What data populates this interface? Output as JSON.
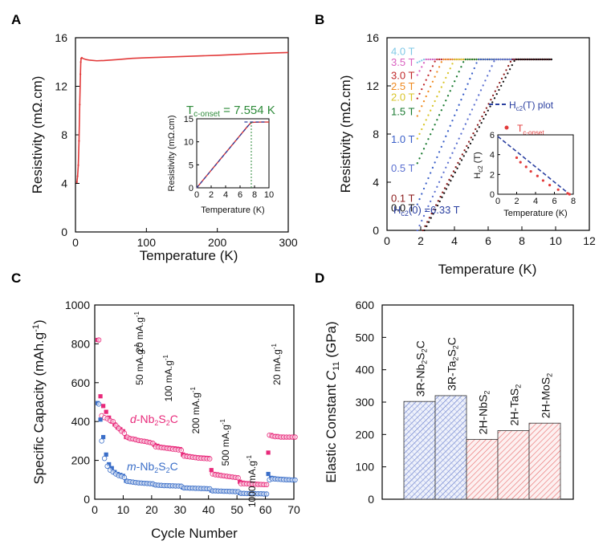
{
  "panels": {
    "A": {
      "letter": "A"
    },
    "B": {
      "letter": "B"
    },
    "C": {
      "letter": "C"
    },
    "D": {
      "letter": "D"
    }
  },
  "chart_data": [
    {
      "panel": "A",
      "type": "line",
      "xlabel": "Temperature (K)",
      "ylabel": "Resistivity (mΩ.cm)",
      "xlim": [
        0,
        300
      ],
      "ylim": [
        0,
        16
      ],
      "xticks": [
        "0",
        "100",
        "200",
        "300"
      ],
      "yticks": [
        "0",
        "4",
        "8",
        "12",
        "16"
      ],
      "annotation": {
        "prefix": "T",
        "sub": "c-onset",
        "suffix": " = 7.554 K"
      },
      "color": "#e23a3a",
      "series": [
        {
          "x": [
            2,
            3,
            4,
            5,
            6,
            7,
            7.5,
            8,
            9,
            10,
            15,
            20,
            30,
            40,
            60,
            80,
            100,
            150,
            200,
            250,
            280,
            300
          ],
          "y": [
            4.1,
            4.6,
            5.5,
            7.5,
            10.5,
            13.0,
            14.0,
            14.3,
            14.35,
            14.3,
            14.2,
            14.15,
            14.1,
            14.12,
            14.2,
            14.3,
            14.35,
            14.45,
            14.55,
            14.68,
            14.75,
            14.78
          ]
        }
      ],
      "inset": {
        "xlabel": "Temperature (K)",
        "ylabel": "Resistivity (mΩ.cm)",
        "xlim": [
          0,
          10
        ],
        "ylim": [
          0,
          15
        ],
        "xticks": [
          "0",
          "2",
          "4",
          "6",
          "8",
          "10"
        ],
        "yticks": [
          "0",
          "5",
          "10",
          "15"
        ],
        "series": [
          {
            "x": [
              0,
              1,
              2,
              3,
              4,
              5,
              6,
              7,
              7.554,
              8,
              9,
              10
            ],
            "y": [
              0,
              1.9,
              3.8,
              5.7,
              7.6,
              9.5,
              11.4,
              13.3,
              14.2,
              14.25,
              14.3,
              14.3
            ]
          }
        ],
        "fit_line": {
          "x": [
            0,
            7.554
          ],
          "y": [
            0,
            14.3
          ]
        },
        "plateau_line": {
          "x": [
            6.6,
            9.5
          ],
          "y": [
            14.3,
            14.3
          ]
        },
        "marker_x": 7.554
      }
    },
    {
      "panel": "B",
      "type": "scatter",
      "xlabel": "Temperature (K)",
      "ylabel": "Resistivity (mΩ.cm)",
      "xlim": [
        0,
        12
      ],
      "ylim": [
        0,
        16
      ],
      "xticks": [
        "0",
        "2",
        "4",
        "6",
        "8",
        "10",
        "12"
      ],
      "yticks": [
        "0",
        "4",
        "8",
        "12",
        "16"
      ],
      "series": [
        {
          "name": "4.0 T",
          "color": "#7fc8e6",
          "y_label": 14.9,
          "onset": 2.2
        },
        {
          "name": "3.5 T",
          "color": "#d95fbf",
          "y_label": 14.0,
          "onset": 2.3
        },
        {
          "name": "3.0 T",
          "color": "#c0282a",
          "y_label": 12.9,
          "onset": 2.9
        },
        {
          "name": "2.5 T",
          "color": "#ef8a20",
          "y_label": 12.0,
          "onset": 3.3
        },
        {
          "name": "2.0 T",
          "color": "#d9c52a",
          "y_label": 11.1,
          "onset": 4.0
        },
        {
          "name": "1.5 T",
          "color": "#1a7a30",
          "y_label": 9.9,
          "onset": 4.6
        },
        {
          "name": "1.0 T",
          "color": "#3a5fc8",
          "y_label": 7.6,
          "onset": 5.4
        },
        {
          "name": "0.5 T",
          "color": "#5a6fd0",
          "y_label": 5.2,
          "onset": 6.4
        },
        {
          "name": "0.1 T",
          "color": "#8b1a1a",
          "y_label": 2.7,
          "onset": 7.4
        },
        {
          "name": "0.0 T",
          "color": "#111111",
          "y_label": 1.9,
          "onset": 7.6
        }
      ],
      "legend": {
        "fit_prefix": "H",
        "fit_sub": "c2",
        "fit_suffix": "(T) plot",
        "points_prefix": "T",
        "points_sub": "c-onset"
      },
      "annotation": {
        "prefix": "H",
        "sub": "c2",
        "suffix": "(0) =6.33 T"
      },
      "inset": {
        "xlabel": "Temperature (K)",
        "ylabel_prefix": "H",
        "ylabel_sub": "c2",
        "ylabel_suffix": " (T)",
        "xlim": [
          0,
          8
        ],
        "ylim": [
          0,
          6.5
        ],
        "xticks": [
          "0",
          "2",
          "4",
          "6",
          "8"
        ],
        "yticks": [
          "0",
          "2",
          "4",
          "6"
        ],
        "points": {
          "x": [
            2.0,
            2.4,
            3.0,
            3.5,
            4.2,
            4.8,
            5.5,
            6.4,
            7.4,
            7.6
          ],
          "y": [
            4.0,
            3.5,
            3.0,
            2.5,
            2.0,
            1.5,
            1.0,
            0.5,
            0.1,
            0.0
          ]
        },
        "fit": {
          "x": [
            0,
            7.6
          ],
          "y": [
            6.33,
            0
          ]
        }
      }
    },
    {
      "panel": "C",
      "type": "scatter",
      "xlabel": "Cycle Number",
      "ylabel": "Specific Capacity (mAh.g",
      "ylabel_sup": "-1",
      "ylabel_close": ")",
      "xlim": [
        0,
        70
      ],
      "ylim": [
        0,
        1000
      ],
      "xticks": [
        "0",
        "10",
        "20",
        "30",
        "40",
        "50",
        "60",
        "70"
      ],
      "yticks": [
        "0",
        "200",
        "400",
        "600",
        "800",
        "1000"
      ],
      "rate_labels": [
        "20 mA.g",
        "50 mA.g",
        "100 mA.g",
        "200 mA.g",
        "500 mA.g",
        "1000 mA.g",
        "20 mA.g"
      ],
      "rate_sup": "-1",
      "series": [
        {
          "name_prefix": "d",
          "name_rest": "-Nb",
          "name_sub1": "2",
          "name_mid": "S",
          "name_sub2": "2",
          "name_end": "C",
          "color": "#e8297a",
          "charge": [
            820,
            530,
            480,
            450,
            420,
            400,
            385,
            370,
            360,
            350,
            320,
            315,
            312,
            310,
            305,
            302,
            300,
            298,
            295,
            290,
            280,
            275,
            270,
            268,
            266,
            265,
            263,
            262,
            260,
            258,
            230,
            225,
            222,
            220,
            218,
            216,
            215,
            214,
            213,
            212,
            150,
            130,
            128,
            125,
            122,
            120,
            118,
            116,
            114,
            112,
            90,
            85,
            83,
            82,
            81,
            80,
            79,
            78,
            77,
            76,
            240,
            330,
            325,
            325,
            322,
            322,
            320,
            320,
            320,
            320
          ],
          "discharge": [
            820,
            430,
            420,
            415,
            405,
            400,
            380,
            365,
            350,
            340,
            320,
            312,
            310,
            306,
            302,
            300,
            298,
            295,
            292,
            288,
            270,
            268,
            266,
            264,
            262,
            260,
            258,
            256,
            254,
            252,
            222,
            220,
            218,
            216,
            214,
            212,
            211,
            210,
            209,
            208,
            130,
            126,
            124,
            122,
            120,
            118,
            116,
            114,
            112,
            110,
            80,
            80,
            79,
            78,
            78,
            77,
            76,
            76,
            75,
            75,
            330,
            325,
            322,
            322,
            320,
            320,
            320,
            320,
            320,
            320
          ]
        },
        {
          "name_prefix": "m",
          "name_rest": "-Nb",
          "name_sub1": "2",
          "name_mid": "S",
          "name_sub2": "2",
          "name_end": "C",
          "color": "#3a6ec8",
          "charge": [
            495,
            410,
            320,
            230,
            180,
            160,
            140,
            130,
            125,
            120,
            95,
            92,
            90,
            88,
            86,
            85,
            84,
            83,
            82,
            81,
            75,
            74,
            73,
            72,
            72,
            71,
            70,
            70,
            69,
            69,
            60,
            59,
            59,
            58,
            58,
            57,
            57,
            56,
            56,
            55,
            45,
            44,
            44,
            43,
            43,
            42,
            42,
            41,
            41,
            40,
            32,
            31,
            31,
            30,
            30,
            30,
            29,
            29,
            29,
            28,
            130,
            110,
            108,
            106,
            105,
            104,
            103,
            102,
            101,
            100
          ],
          "discharge": [
            490,
            300,
            210,
            170,
            150,
            140,
            130,
            122,
            118,
            112,
            92,
            90,
            88,
            86,
            84,
            83,
            82,
            81,
            80,
            79,
            73,
            72,
            71,
            70,
            70,
            69,
            69,
            68,
            68,
            67,
            58,
            58,
            57,
            57,
            56,
            56,
            55,
            55,
            54,
            54,
            43,
            43,
            42,
            42,
            41,
            41,
            40,
            40,
            39,
            39,
            30,
            30,
            29,
            29,
            29,
            28,
            28,
            28,
            27,
            27,
            100,
            105,
            104,
            103,
            102,
            101,
            100,
            100,
            99,
            99
          ]
        }
      ]
    },
    {
      "panel": "D",
      "type": "bar",
      "xlabel": "",
      "ylabel_prefix": "Elastic Constant ",
      "ylabel_italic": "C",
      "ylabel_sub": "11",
      "ylabel_suffix": " (GPa)",
      "ylim": [
        0,
        600
      ],
      "yticks": [
        "0",
        "100",
        "200",
        "300",
        "400",
        "500",
        "600"
      ],
      "categories": [
        {
          "parts": [
            "3R-Nb",
            "2",
            "S",
            "2",
            "C"
          ],
          "color": "#3a5fc8"
        },
        {
          "parts": [
            "3R-Ta",
            "2",
            "S",
            "2",
            "C"
          ],
          "color": "#3a5fc8"
        },
        {
          "parts": [
            "2H-NbS",
            "2"
          ],
          "color": "#e23a3a"
        },
        {
          "parts": [
            "2H-TaS",
            "2"
          ],
          "color": "#e23a3a"
        },
        {
          "parts": [
            "2H-MoS",
            "2"
          ],
          "color": "#e23a3a"
        }
      ],
      "values": [
        302,
        320,
        185,
        212,
        235
      ]
    }
  ]
}
